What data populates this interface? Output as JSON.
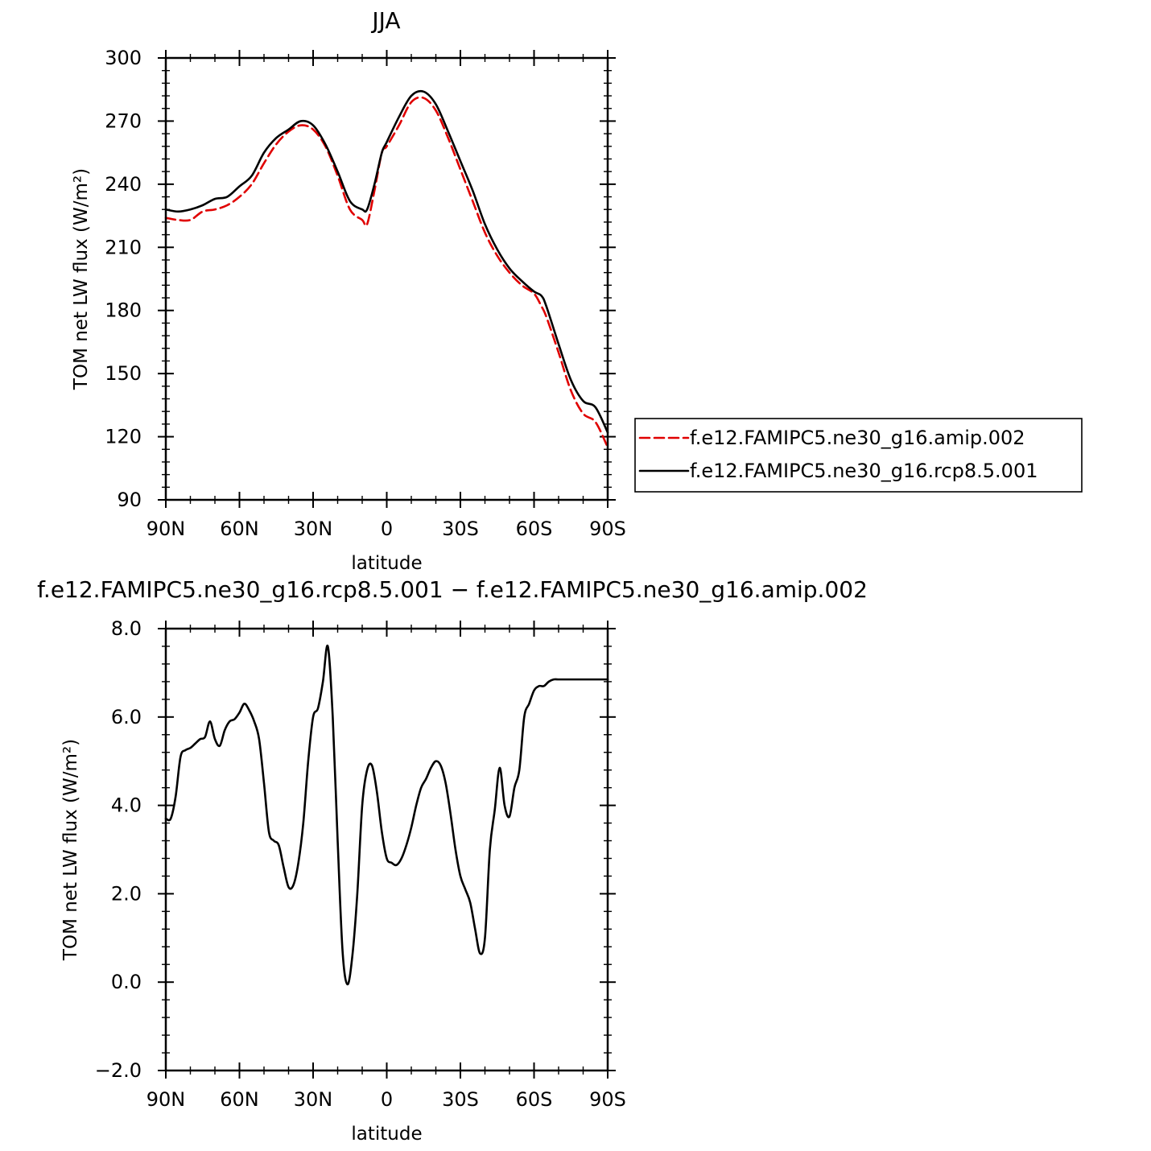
{
  "chart_data": [
    {
      "type": "line",
      "title": "JJA",
      "xlabel": "latitude",
      "ylabel": "TOM net LW flux (W/m²)",
      "x_ticks": [
        {
          "value": 90,
          "label": "90N"
        },
        {
          "value": 60,
          "label": "60N"
        },
        {
          "value": 30,
          "label": "30N"
        },
        {
          "value": 0,
          "label": "0"
        },
        {
          "value": -30,
          "label": "30S"
        },
        {
          "value": -60,
          "label": "60S"
        },
        {
          "value": -90,
          "label": "90S"
        }
      ],
      "xlim": [
        90,
        -90
      ],
      "ylim": [
        90,
        300
      ],
      "y_ticks": [
        {
          "value": 90,
          "label": "90"
        },
        {
          "value": 120,
          "label": "120"
        },
        {
          "value": 150,
          "label": "150"
        },
        {
          "value": 180,
          "label": "180"
        },
        {
          "value": 210,
          "label": "210"
        },
        {
          "value": 240,
          "label": "240"
        },
        {
          "value": 270,
          "label": "270"
        },
        {
          "value": 300,
          "label": "300"
        }
      ],
      "legend_position": "right",
      "x": [
        90,
        85,
        80,
        75,
        70,
        65,
        60,
        55,
        50,
        45,
        40,
        35,
        30,
        25,
        20,
        15,
        10,
        8,
        5,
        2,
        0,
        -5,
        -10,
        -15,
        -20,
        -25,
        -30,
        -35,
        -40,
        -45,
        -50,
        -55,
        -60,
        -63,
        -65,
        -70,
        -75,
        -80,
        -85,
        -90
      ],
      "series": [
        {
          "name": "f.e12.FAMIPC5.ne30_g16.amip.002",
          "color": "#e00000",
          "dash": "dashed",
          "values": [
            224,
            223,
            223,
            227,
            228,
            230,
            234,
            240,
            250,
            259,
            265,
            268,
            266,
            258,
            244,
            228,
            223,
            221,
            237,
            255,
            258,
            268,
            279,
            281,
            275,
            262,
            247,
            232,
            217,
            206,
            198,
            192,
            188,
            182,
            177,
            160,
            142,
            131,
            127,
            115
          ]
        },
        {
          "name": "f.e12.FAMIPC5.ne30_g16.rcp8.5.001",
          "color": "#000000",
          "dash": "solid",
          "values": [
            228,
            227,
            228,
            230,
            233,
            234,
            239,
            244,
            255,
            262,
            266,
            270,
            268,
            259,
            246,
            232,
            228,
            228,
            240,
            255,
            260,
            272,
            282,
            284,
            278,
            265,
            251,
            237,
            221,
            209,
            200,
            194,
            189,
            187,
            182,
            164,
            147,
            137,
            134,
            122
          ]
        }
      ]
    },
    {
      "type": "line",
      "title": "f.e12.FAMIPC5.ne30_g16.rcp8.5.001 − f.e12.FAMIPC5.ne30_g16.amip.002",
      "xlabel": "latitude",
      "ylabel": "TOM net LW flux (W/m²)",
      "x_ticks": [
        {
          "value": 90,
          "label": "90N"
        },
        {
          "value": 60,
          "label": "60N"
        },
        {
          "value": 30,
          "label": "30N"
        },
        {
          "value": 0,
          "label": "0"
        },
        {
          "value": -30,
          "label": "30S"
        },
        {
          "value": -60,
          "label": "60S"
        },
        {
          "value": -90,
          "label": "90S"
        }
      ],
      "xlim": [
        90,
        -90
      ],
      "ylim": [
        -2,
        8
      ],
      "y_ticks": [
        {
          "value": -2,
          "label": "−2.0"
        },
        {
          "value": 0,
          "label": "0.0"
        },
        {
          "value": 2,
          "label": "2.0"
        },
        {
          "value": 4,
          "label": "4.0"
        },
        {
          "value": 6,
          "label": "6.0"
        },
        {
          "value": 8,
          "label": "8.0"
        }
      ],
      "x": [
        90,
        88,
        86,
        84,
        82,
        80,
        78,
        76,
        74,
        72,
        70,
        68,
        66,
        64,
        62,
        60,
        58,
        56,
        54,
        52,
        50,
        48,
        46,
        44,
        42,
        40,
        38,
        36,
        34,
        32,
        30,
        28,
        26,
        24,
        22,
        20,
        18,
        16,
        14,
        12,
        10,
        8,
        6,
        4,
        2,
        0,
        -2,
        -4,
        -6,
        -8,
        -10,
        -12,
        -14,
        -16,
        -18,
        -20,
        -22,
        -24,
        -26,
        -28,
        -30,
        -32,
        -34,
        -36,
        -38,
        -40,
        -42,
        -44,
        -46,
        -48,
        -50,
        -52,
        -54,
        -56,
        -58,
        -60,
        -62,
        -64,
        -66,
        -68,
        -70,
        -72,
        -74,
        -76,
        -78,
        -80,
        -82,
        -84,
        -86,
        -88,
        -90
      ],
      "series": [
        {
          "name": "",
          "color": "#000000",
          "dash": "solid",
          "values": [
            3.7,
            3.7,
            4.2,
            5.1,
            5.25,
            5.3,
            5.4,
            5.5,
            5.55,
            5.9,
            5.5,
            5.35,
            5.7,
            5.9,
            5.95,
            6.1,
            6.3,
            6.15,
            5.9,
            5.5,
            4.5,
            3.4,
            3.2,
            3.1,
            2.6,
            2.15,
            2.2,
            2.7,
            3.6,
            5.0,
            6.0,
            6.2,
            6.8,
            7.6,
            6.0,
            3.2,
            0.7,
            -0.05,
            0.6,
            2.0,
            4.0,
            4.8,
            4.9,
            4.3,
            3.4,
            2.8,
            2.7,
            2.65,
            2.8,
            3.1,
            3.5,
            4.0,
            4.4,
            4.6,
            4.85,
            5.0,
            4.9,
            4.5,
            3.8,
            3.0,
            2.4,
            2.1,
            1.8,
            1.2,
            0.65,
            1.0,
            3.0,
            3.9,
            4.85,
            4.0,
            3.75,
            4.4,
            4.8,
            6.0,
            6.3,
            6.6,
            6.7,
            6.7,
            6.8,
            6.85,
            6.85,
            6.85,
            6.85,
            6.85,
            6.85,
            6.85,
            6.85,
            6.85,
            6.85,
            6.85,
            6.85
          ]
        }
      ]
    }
  ]
}
